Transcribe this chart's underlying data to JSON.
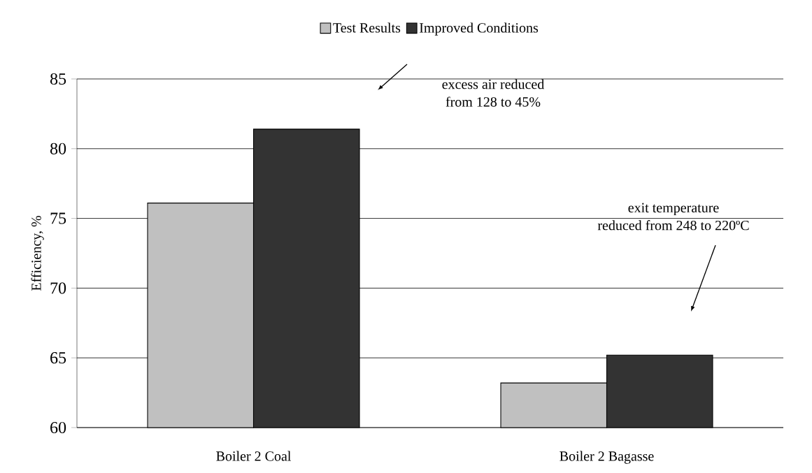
{
  "chart_data": {
    "type": "bar",
    "ylabel": "Efficiency, %",
    "categories": [
      "Boiler 2 Coal",
      "Boiler 2 Bagasse"
    ],
    "series": [
      {
        "name": "Test Results",
        "color": "#c0c0c0",
        "values": [
          76.1,
          63.2
        ]
      },
      {
        "name": "Improved Conditions",
        "color": "#333333",
        "values": [
          81.4,
          65.2
        ]
      }
    ],
    "ylim": [
      60,
      85
    ],
    "yticks": [
      60,
      65,
      70,
      75,
      80,
      85
    ],
    "grid": "y",
    "legend": "top",
    "annotations": [
      "excess air reduced\nfrom 128 to 45%",
      "exit temperature\nreduced from 248 to 220ºC"
    ]
  }
}
